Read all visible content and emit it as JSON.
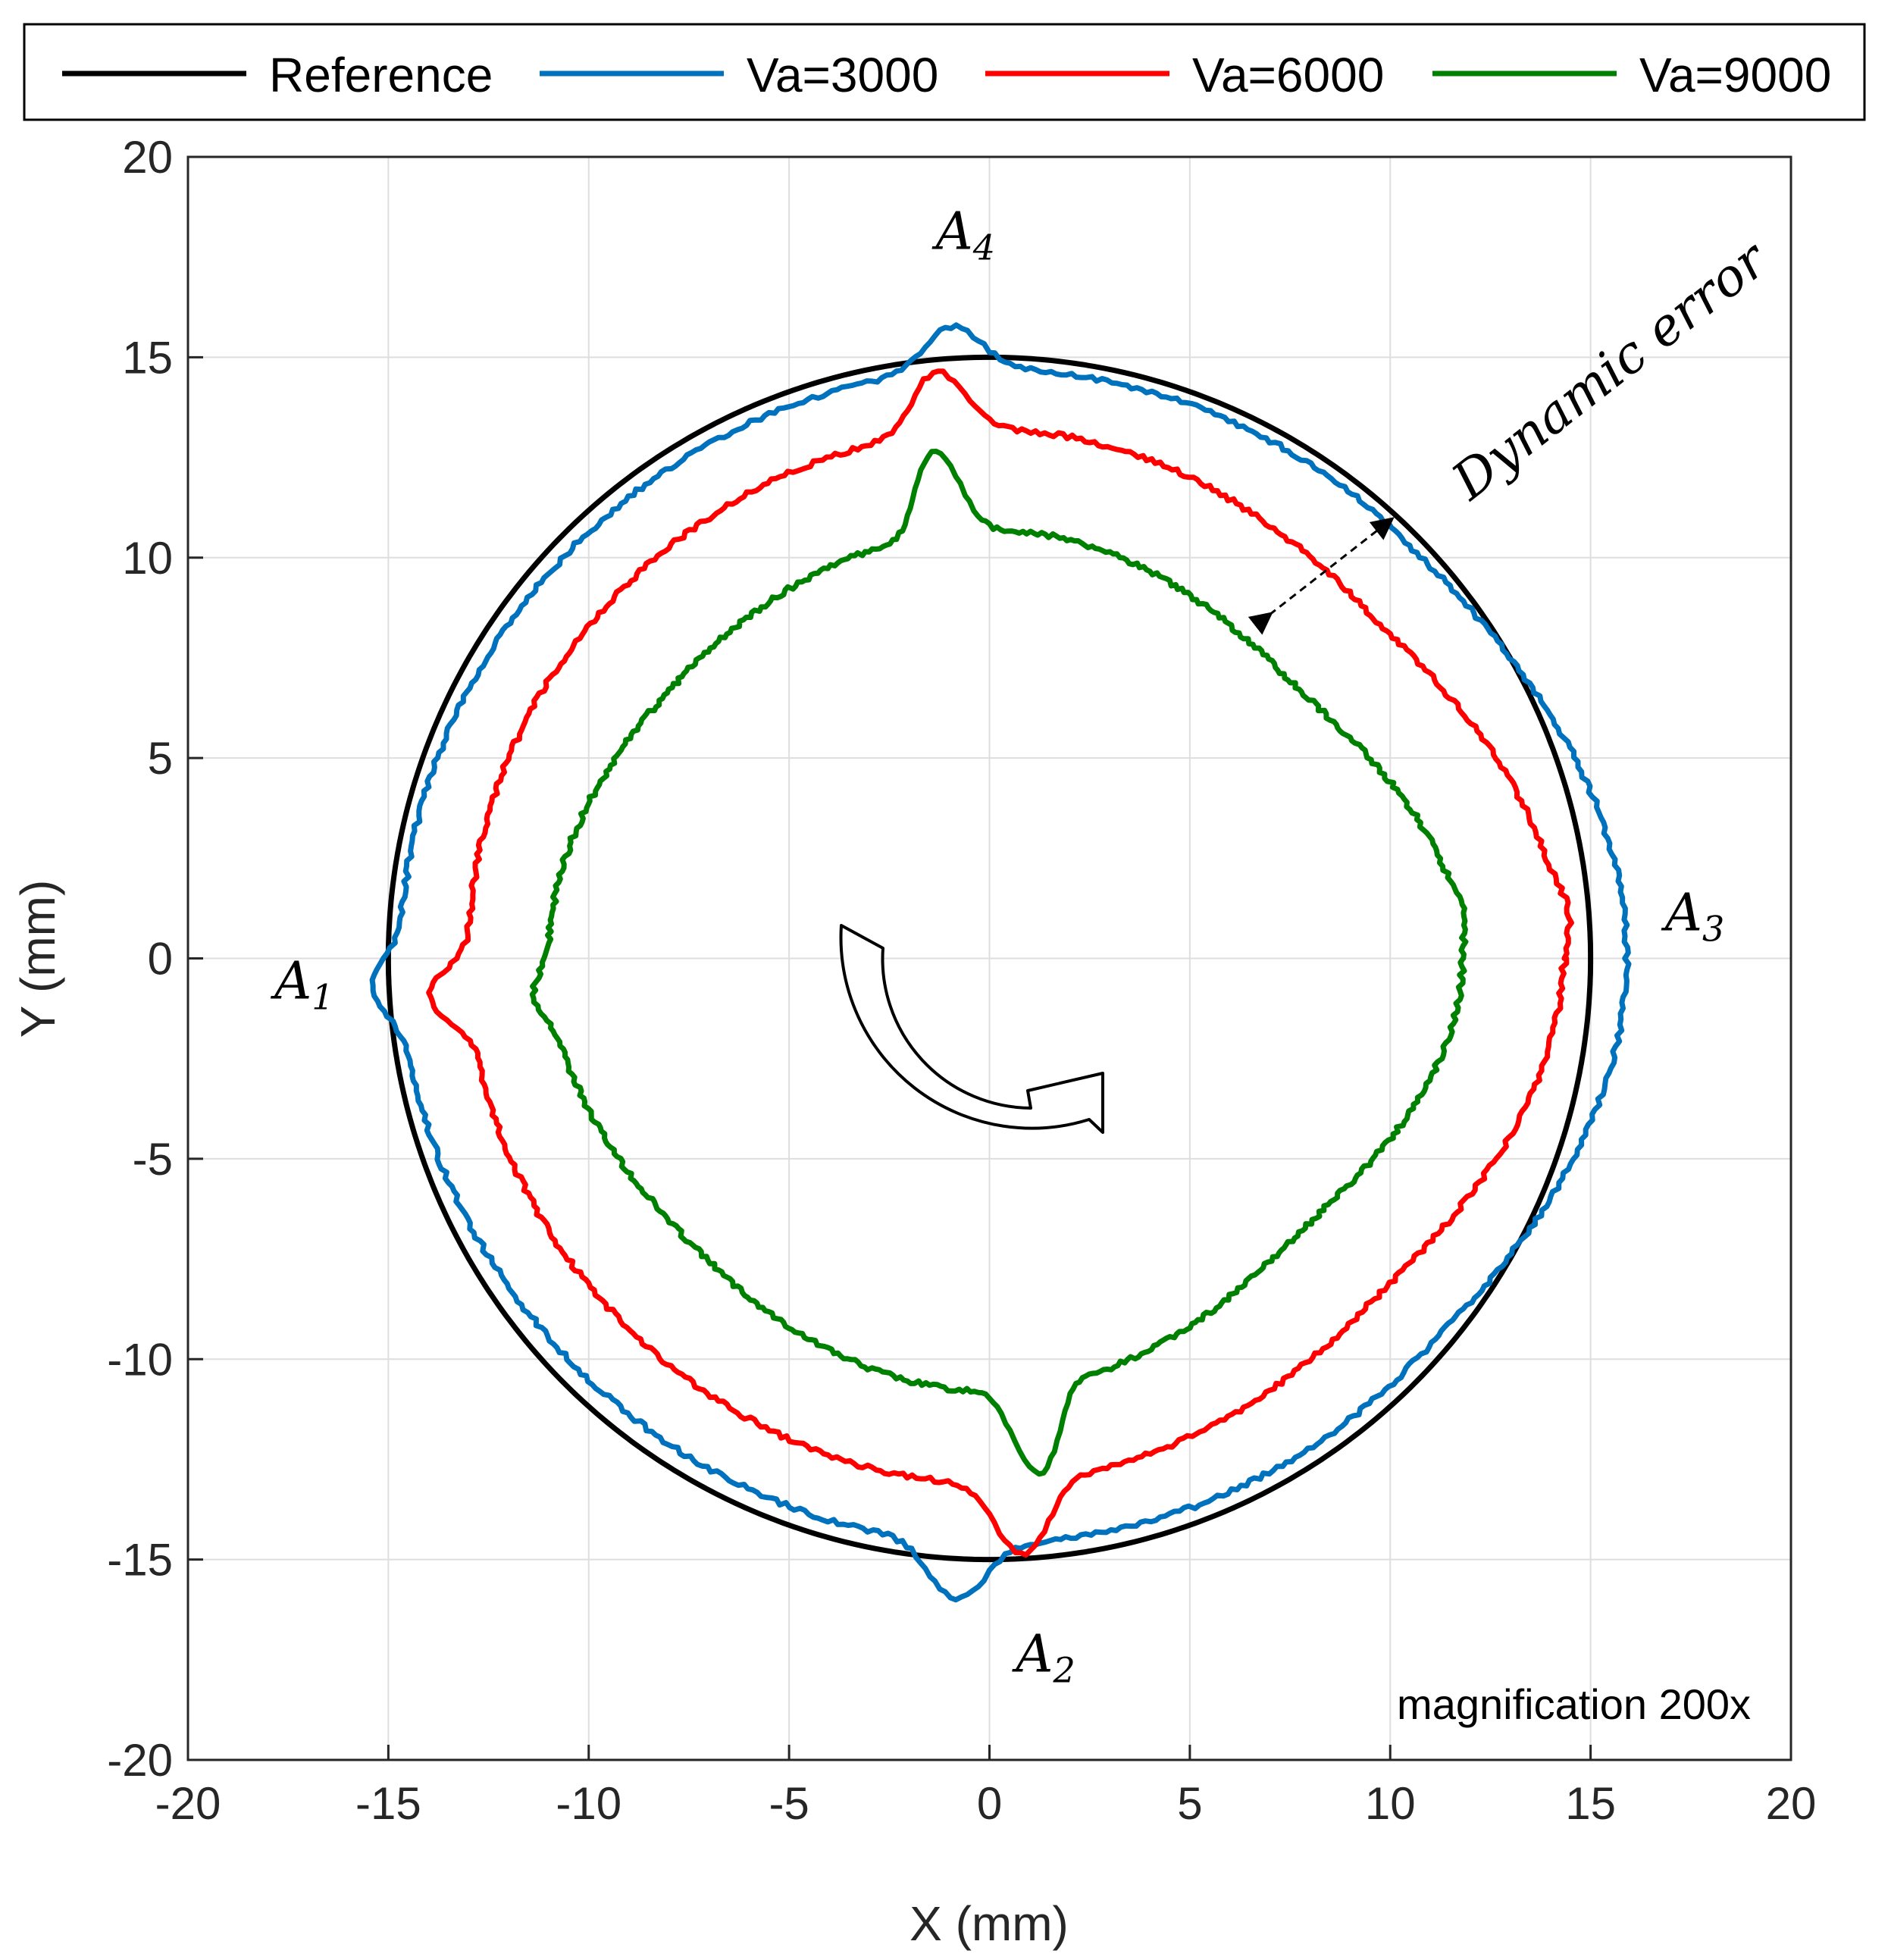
{
  "chart_data": {
    "type": "line",
    "title": "",
    "xlabel": "X (mm)",
    "ylabel": "Y (mm)",
    "xlim": [
      -20,
      20
    ],
    "ylim": [
      -20,
      20
    ],
    "xticks": [
      -20,
      -15,
      -10,
      -5,
      0,
      5,
      10,
      15,
      20
    ],
    "yticks": [
      -20,
      -15,
      -10,
      -5,
      0,
      5,
      10,
      15,
      20
    ],
    "grid": true,
    "legend_position": "top",
    "note": "magnification 200x",
    "series": [
      {
        "name": "Reference",
        "color": "#000000",
        "radius": 15,
        "rx": [
          15,
          15,
          15,
          15,
          15,
          15,
          15,
          15
        ]
      },
      {
        "name": "Va=3000",
        "color": "#0072BD",
        "radius": 15,
        "rx": [
          15.9,
          14.7,
          14.7,
          14.6,
          14.7,
          14.5,
          14.6,
          14.6
        ],
        "spikes": [
          {
            "angle": 0.05,
            "r": 15.9
          },
          {
            "angle": 4.66,
            "r": 16.0
          },
          {
            "angle": 3.19,
            "r": 15.4
          },
          {
            "angle": 1.63,
            "r": 15.8
          }
        ]
      },
      {
        "name": "Va=6000",
        "color": "#FF0000",
        "radius": 13.6,
        "rx": [
          14.3,
          12.8,
          13.2,
          13.0,
          13.0,
          12.9,
          13.1,
          12.8
        ],
        "spikes": [
          {
            "angle": 0.07,
            "r": 14.5
          },
          {
            "angle": 4.77,
            "r": 14.9
          },
          {
            "angle": 3.21,
            "r": 14.0
          },
          {
            "angle": 1.66,
            "r": 14.7
          }
        ]
      },
      {
        "name": "Va=9000",
        "color": "#008000",
        "radius": 11.3,
        "rx": [
          11.8,
          10.2,
          10.7,
          10.4,
          11.0,
          10.3,
          10.8,
          10.3
        ],
        "spikes": [
          {
            "angle": 0.09,
            "r": 11.9
          },
          {
            "angle": 4.81,
            "r": 12.9
          },
          {
            "angle": 3.22,
            "r": 11.4
          },
          {
            "angle": 1.68,
            "r": 12.7
          }
        ]
      }
    ],
    "annotations": [
      {
        "label": "A",
        "sub": "1",
        "x": -17.1,
        "y": -1.0
      },
      {
        "label": "A",
        "sub": "2",
        "x": 1.4,
        "y": -17.8
      },
      {
        "label": "A",
        "sub": "3",
        "x": 17.6,
        "y": 0.7
      },
      {
        "label": "A",
        "sub": "4",
        "x": -0.6,
        "y": 17.7
      },
      {
        "label": "Dynamic error",
        "x": 12.0,
        "y": 11.4
      }
    ]
  }
}
